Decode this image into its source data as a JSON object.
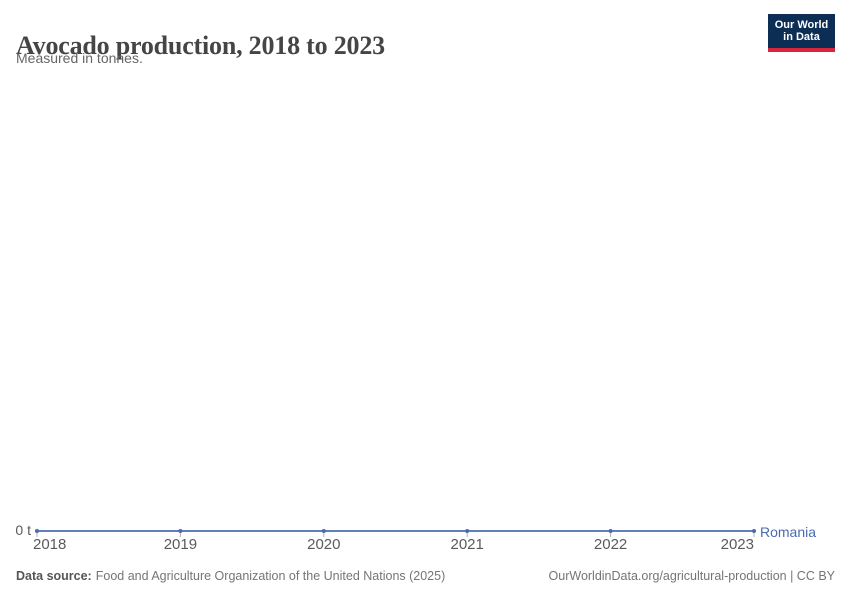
{
  "header": {
    "title": "Avocado production, 2018 to 2023",
    "subtitle": "Measured in tonnes."
  },
  "logo": {
    "line1": "Our World",
    "line2": "in Data"
  },
  "chart_data": {
    "type": "line",
    "title": "Avocado production, 2018 to 2023",
    "subtitle": "Measured in tonnes.",
    "x": [
      2018,
      2019,
      2020,
      2021,
      2022,
      2023
    ],
    "series": [
      {
        "name": "Romania",
        "values": [
          0,
          0,
          0,
          0,
          0,
          0
        ]
      }
    ],
    "unit": "t",
    "xlabel": "",
    "ylabel": "",
    "y_tick_labels": [
      "0 t"
    ],
    "ylim": [
      0,
      0
    ],
    "grid": false,
    "legend_position": "line-end"
  },
  "axis": {
    "zero_label": "0 t"
  },
  "footer": {
    "source_label": "Data source:",
    "source_text": "Food and Agriculture Organization of the United Nations (2025)",
    "link_text": "OurWorldinData.org/agricultural-production | CC BY"
  },
  "colors": {
    "line": "#4a6bb0",
    "entity_label": "#4a6bb0",
    "axis_text": "#5a5a5a",
    "tick": "#b0b0b0",
    "logo_bg": "#0d2e54",
    "logo_accent": "#d7253d",
    "title_text": "#454545",
    "subtitle_text": "#666666",
    "footer_text": "#757575"
  }
}
